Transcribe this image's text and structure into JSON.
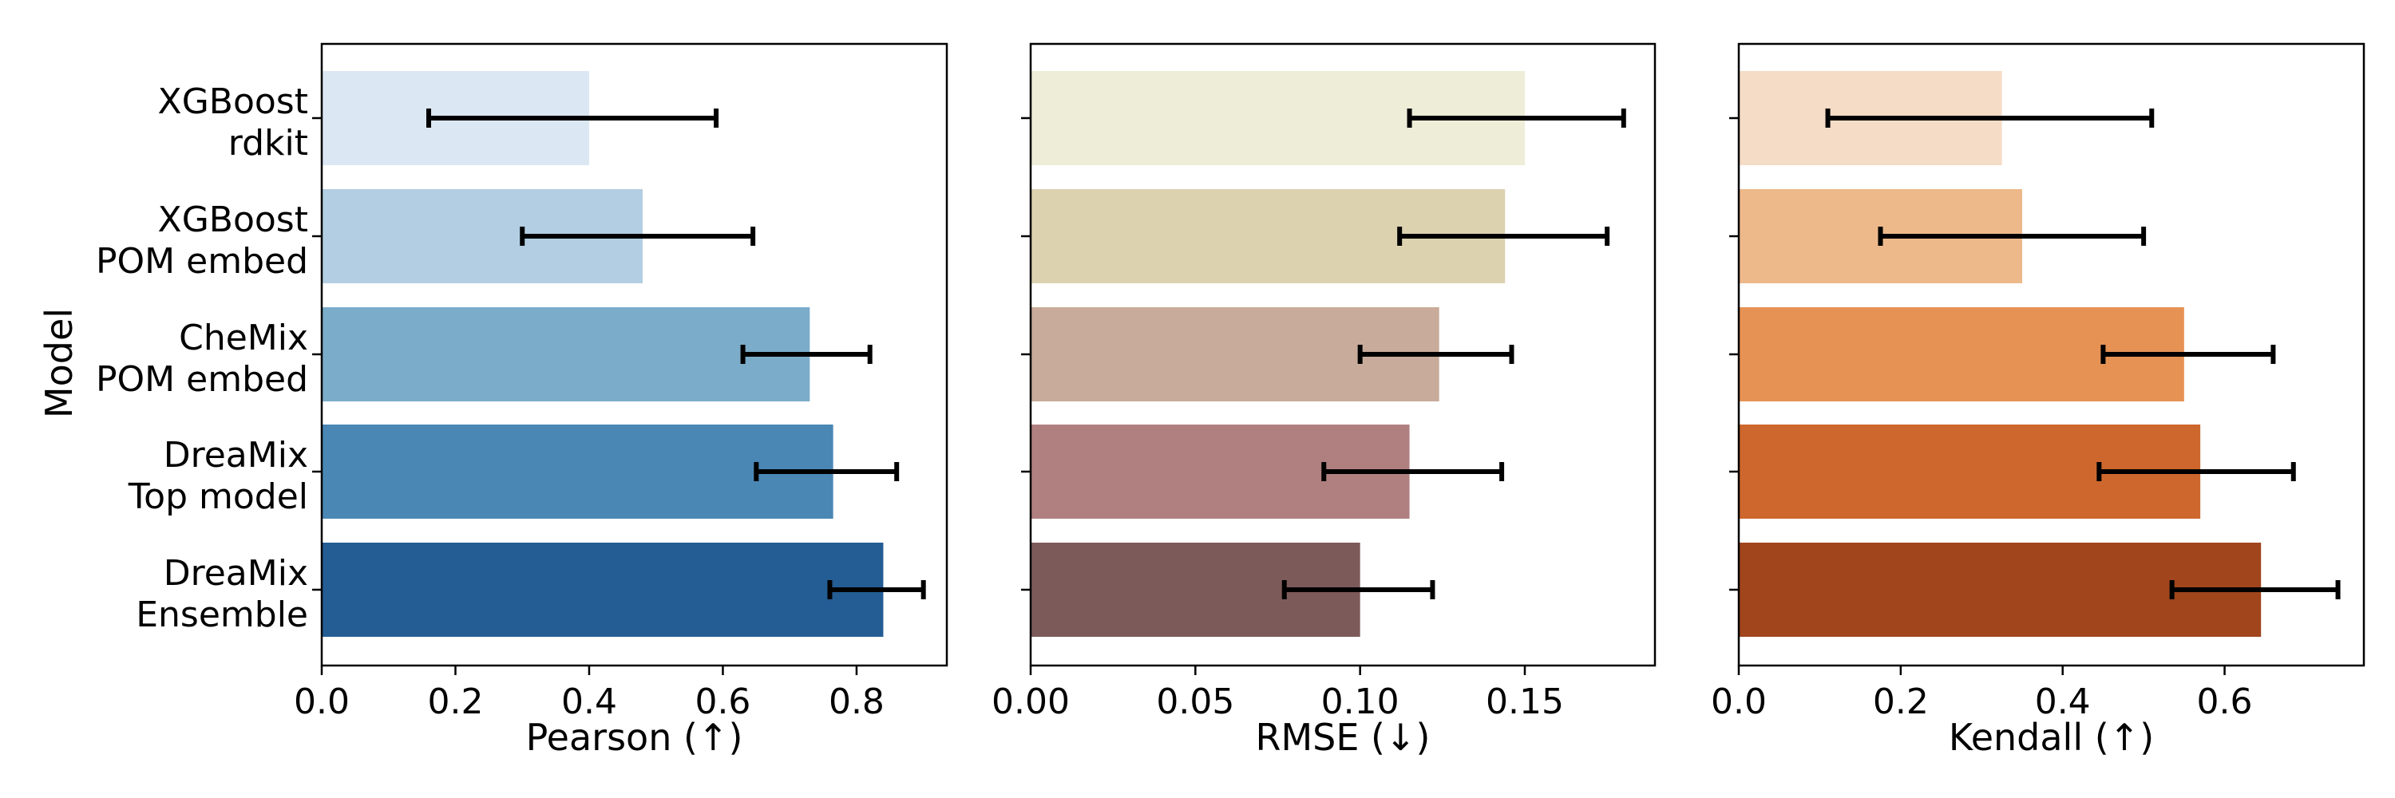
{
  "figure": {
    "ylabel": "Model"
  },
  "categories": [
    [
      "XGBoost",
      "rdkit"
    ],
    [
      "XGBoost",
      "POM embed"
    ],
    [
      "CheMix",
      "POM embed"
    ],
    [
      "DreaMix",
      "Top model"
    ],
    [
      "DreaMix",
      "Ensemble"
    ]
  ],
  "chart_data": [
    {
      "type": "bar",
      "orientation": "horizontal",
      "xlabel": "Pearson (↑)",
      "xlim": [
        0,
        0.935
      ],
      "xticks": [
        0.0,
        0.2,
        0.4,
        0.6,
        0.8
      ],
      "tick_labels": [
        "0.0",
        "0.2",
        "0.4",
        "0.6",
        "0.8"
      ],
      "values": [
        0.4,
        0.48,
        0.73,
        0.765,
        0.84
      ],
      "err_low": [
        0.16,
        0.3,
        0.63,
        0.65,
        0.76
      ],
      "err_high": [
        0.59,
        0.645,
        0.82,
        0.86,
        0.9
      ],
      "colors": [
        "#dbe7f3",
        "#b3cee2",
        "#7bacca",
        "#4a87b5",
        "#235d94"
      ],
      "grid": false
    },
    {
      "type": "bar",
      "orientation": "horizontal",
      "xlabel": "RMSE (↓)",
      "xlim": [
        0,
        0.1895
      ],
      "xticks": [
        0.0,
        0.05,
        0.1,
        0.15
      ],
      "tick_labels": [
        "0.00",
        "0.05",
        "0.10",
        "0.15"
      ],
      "values": [
        0.15,
        0.144,
        0.124,
        0.115,
        0.1
      ],
      "err_low": [
        0.115,
        0.112,
        0.1,
        0.089,
        0.077
      ],
      "err_high": [
        0.18,
        0.175,
        0.146,
        0.143,
        0.122
      ],
      "colors": [
        "#eeedd8",
        "#dcd2b0",
        "#c8ab9a",
        "#b08080",
        "#7d5a5a"
      ],
      "grid": false
    },
    {
      "type": "bar",
      "orientation": "horizontal",
      "xlabel": "Kendall (↑)",
      "xlim": [
        0,
        0.772
      ],
      "xticks": [
        0.0,
        0.2,
        0.4,
        0.6
      ],
      "tick_labels": [
        "0.0",
        "0.2",
        "0.4",
        "0.6"
      ],
      "values": [
        0.325,
        0.35,
        0.55,
        0.57,
        0.645
      ],
      "err_low": [
        0.11,
        0.175,
        0.45,
        0.445,
        0.535
      ],
      "err_high": [
        0.51,
        0.5,
        0.66,
        0.685,
        0.74
      ],
      "colors": [
        "#f5dcc6",
        "#edb98a",
        "#e69255",
        "#cd672d",
        "#a0451c"
      ],
      "grid": false
    }
  ]
}
